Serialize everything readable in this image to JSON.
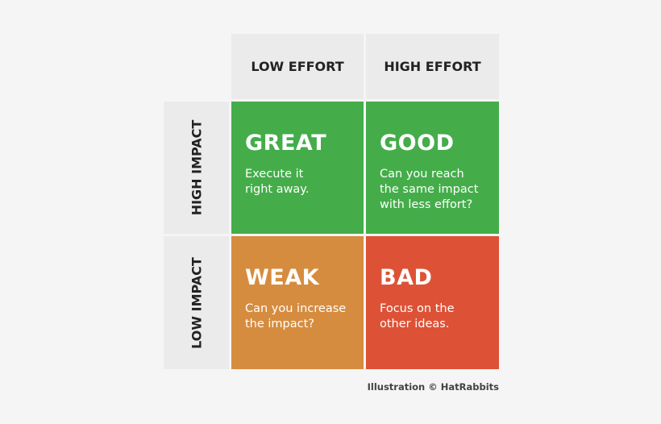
{
  "columns": [
    "LOW EFFORT",
    "HIGH EFFORT"
  ],
  "rows": [
    "HIGH IMPACT",
    "LOW IMPACT"
  ],
  "cells": [
    {
      "title": "GREAT",
      "lines": [
        "Execute it",
        "right away."
      ]
    },
    {
      "title": "GOOD",
      "lines": [
        "Can you reach",
        "the same impact",
        "with less effort?"
      ]
    },
    {
      "title": "WEAK",
      "lines": [
        "Can you increase",
        "the impact?"
      ]
    },
    {
      "title": "BAD",
      "lines": [
        "Focus on the",
        "other ideas."
      ]
    }
  ],
  "credit": "Illustration © HatRabbits"
}
